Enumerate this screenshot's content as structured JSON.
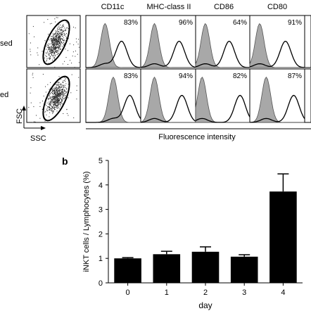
{
  "panel_a": {
    "row_labels": [
      "sed",
      "ed"
    ],
    "markers": [
      "CD11c",
      "MHC-class II",
      "CD86",
      "CD80"
    ],
    "percentages": [
      [
        "83%",
        "96%",
        "64%",
        "91%"
      ],
      [
        "83%",
        "94%",
        "82%",
        "87%"
      ]
    ],
    "axis_labels": {
      "y": "FSC",
      "x": "SSC",
      "histogram_x": "Fluorescence intensity"
    },
    "colors": {
      "isotype_fill": "#a8a8a8",
      "stain_line": "#000000",
      "dots": "#222222"
    }
  },
  "panel_b": {
    "label": "b",
    "chart_data": {
      "type": "bar",
      "categories": [
        "0",
        "1",
        "2",
        "3",
        "4"
      ],
      "values": [
        1.0,
        1.17,
        1.27,
        1.07,
        3.73
      ],
      "errors": [
        0.03,
        0.12,
        0.2,
        0.08,
        0.72
      ],
      "xlabel": "day",
      "ylabel": "iNKT cells / Lymphocytes (%)",
      "ylim": [
        0,
        5
      ],
      "yticks": [
        "0",
        "1",
        "2",
        "3",
        "4",
        "5"
      ],
      "bar_color": "#000000",
      "grid": false
    }
  }
}
